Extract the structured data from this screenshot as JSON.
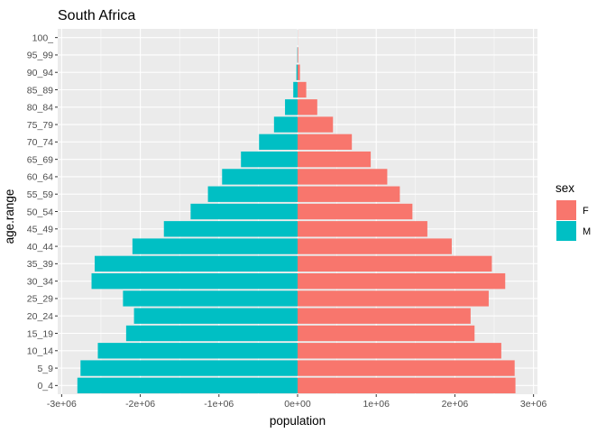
{
  "chart_data": {
    "type": "bar",
    "orientation": "horizontal",
    "title": "South Africa",
    "xlabel": "population",
    "ylabel": "age.range",
    "categories": [
      "0_4",
      "5_9",
      "10_14",
      "15_19",
      "20_24",
      "25_29",
      "30_34",
      "35_39",
      "40_44",
      "45_49",
      "50_54",
      "55_59",
      "60_64",
      "65_69",
      "70_74",
      "75_79",
      "80_84",
      "85_89",
      "90_94",
      "95_99",
      "100_"
    ],
    "series": [
      {
        "name": "F",
        "color": "#F8766D",
        "values": [
          2770000,
          2760000,
          2590000,
          2250000,
          2200000,
          2430000,
          2640000,
          2470000,
          1960000,
          1650000,
          1460000,
          1300000,
          1140000,
          930000,
          690000,
          450000,
          250000,
          110000,
          30000,
          8000,
          2000
        ]
      },
      {
        "name": "M",
        "color": "#00BFC4",
        "values": [
          -2800000,
          -2760000,
          -2540000,
          -2180000,
          -2080000,
          -2220000,
          -2620000,
          -2580000,
          -2100000,
          -1700000,
          -1360000,
          -1140000,
          -960000,
          -720000,
          -490000,
          -300000,
          -160000,
          -55000,
          -15000,
          -4000,
          -1000
        ]
      }
    ],
    "xlim": [
      -3050000,
      3050000
    ],
    "xticks": [
      -3000000,
      -2000000,
      -1000000,
      0,
      1000000,
      2000000,
      3000000
    ],
    "xtick_labels": [
      "-3e+06",
      "-2e+06",
      "-1e+06",
      "0e+00",
      "1e+06",
      "2e+06",
      "3e+06"
    ],
    "grid": true,
    "legend": {
      "title": "sex",
      "position": "right",
      "entries": [
        "F",
        "M"
      ]
    }
  }
}
